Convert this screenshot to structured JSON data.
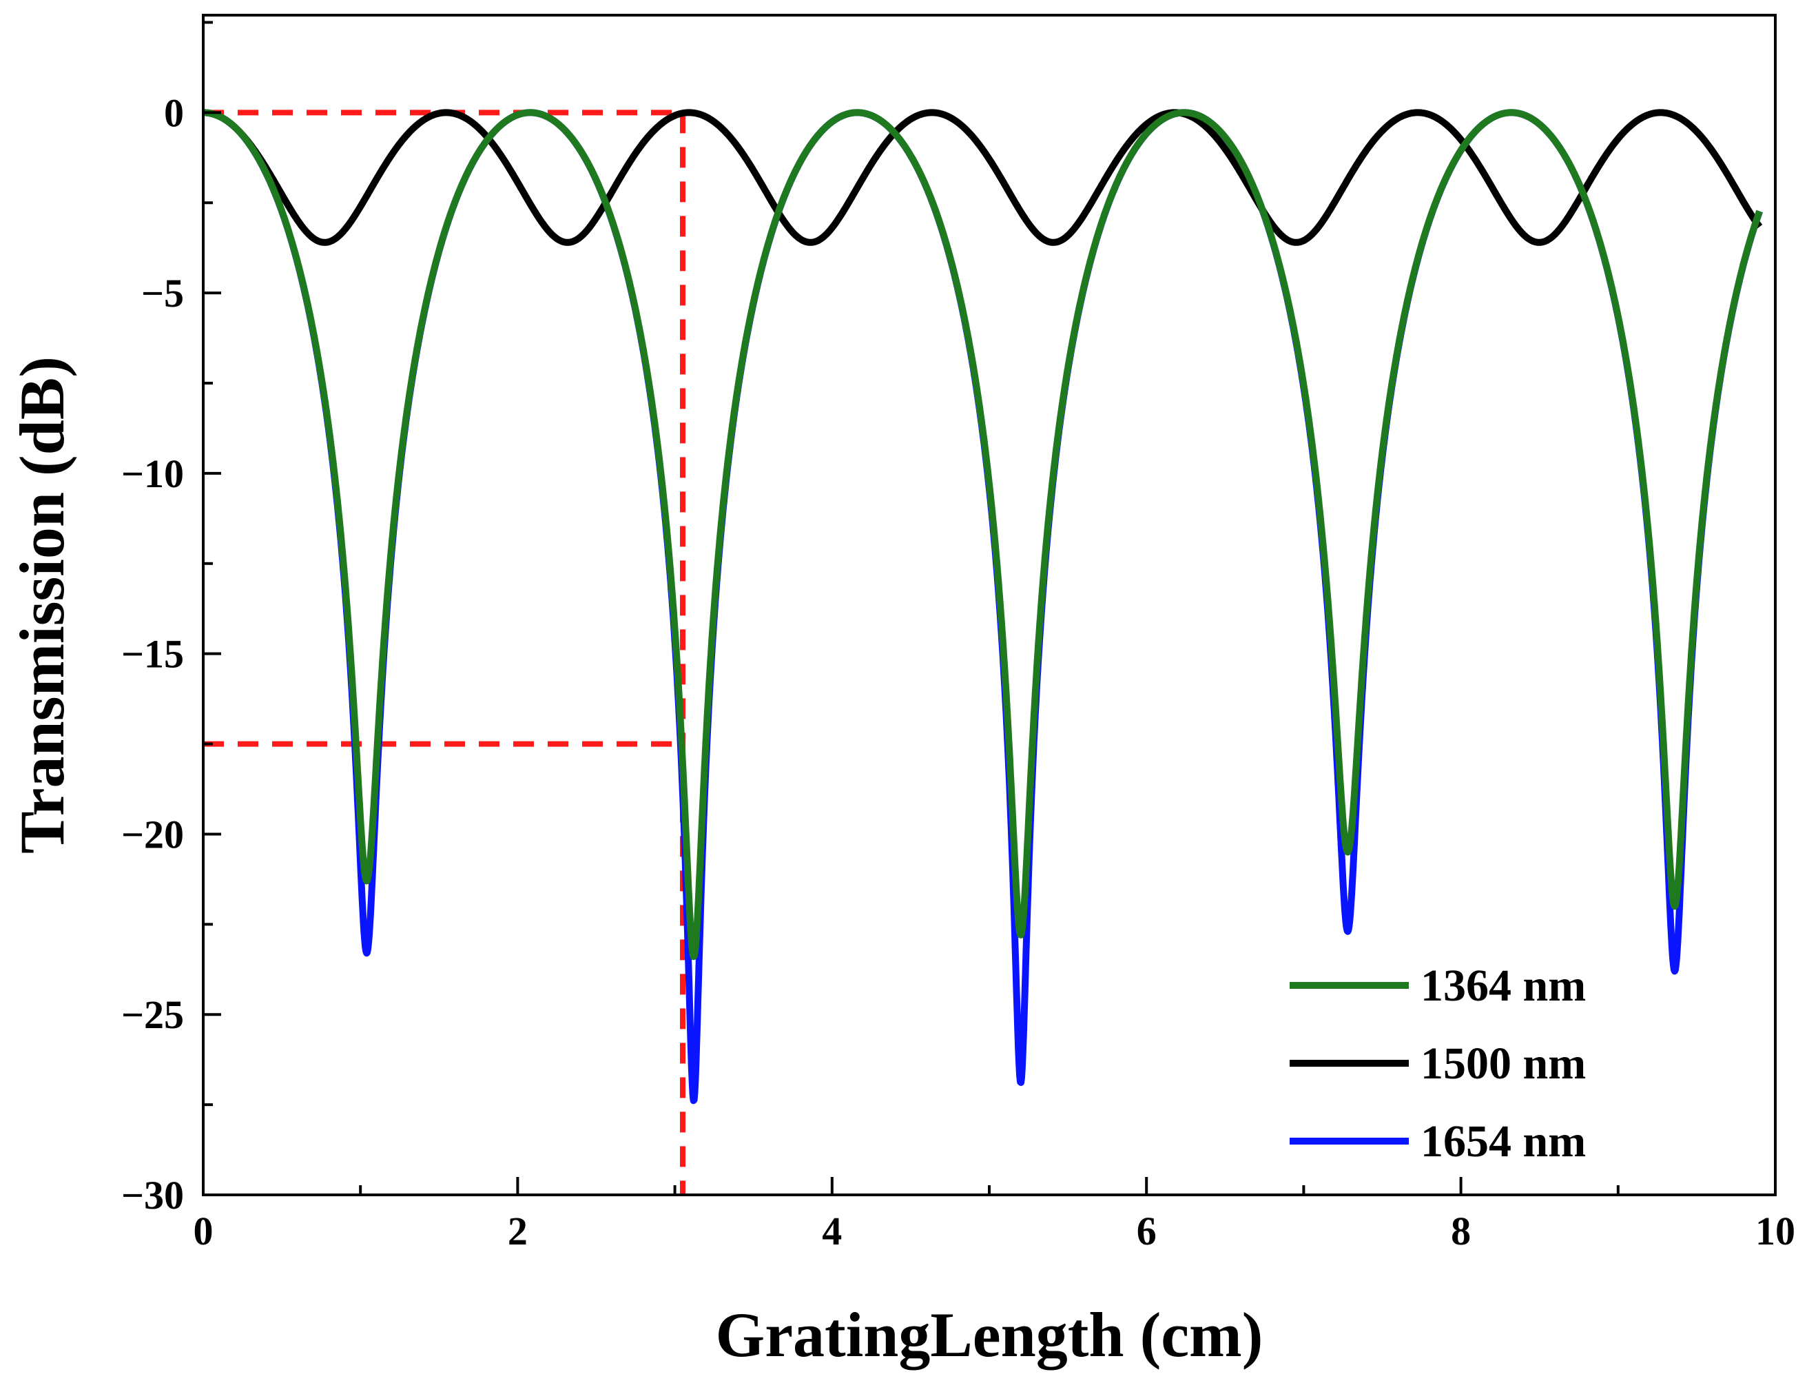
{
  "chart_data": {
    "type": "line",
    "title": "",
    "xlabel": "GratingLength (cm)",
    "ylabel": "Transmission (dB)",
    "xlim": [
      0,
      10
    ],
    "ylim": [
      -30,
      2.7
    ],
    "xticks": [
      0,
      2,
      4,
      6,
      8,
      10
    ],
    "xtick_labels": [
      "0",
      "2",
      "4",
      "6",
      "8",
      "10"
    ],
    "yticks": [
      0,
      -5,
      -10,
      -15,
      -20,
      -25,
      -30
    ],
    "ytick_labels": [
      "0",
      "−5",
      "−10",
      "−15",
      "−20",
      "−25",
      "−30"
    ],
    "grid": false,
    "legend_position": "bottom-right",
    "x_max_data": 9.9,
    "series": [
      {
        "name": "1654 nm",
        "legend_label": "1654 nm",
        "color": "#0a14ff",
        "period_cm": 2.08,
        "dip_depth_db": [
          -23.3,
          -27.4,
          -26.9,
          -22.7,
          -23.8
        ]
      },
      {
        "name": "1500 nm",
        "legend_label": "1500 nm",
        "color": "#000000",
        "period_cm": 1.545,
        "dip_depth_db": [
          -3.6,
          -3.6,
          -3.6,
          -3.6,
          -3.6,
          -3.6
        ]
      },
      {
        "name": "1364 nm",
        "legend_label": "1364 nm",
        "color": "#1f7a1f",
        "period_cm": 2.08,
        "dip_depth_db": [
          -21.3,
          -23.4,
          -22.8,
          -20.5,
          -22.0
        ]
      }
    ],
    "legend_order": [
      "1364 nm",
      "1500 nm",
      "1654 nm"
    ],
    "annotations": {
      "color": "#ff1a1a",
      "horizontal_lines": [
        {
          "y": 0,
          "x_from": 0,
          "x_to": 3.05
        },
        {
          "y": -17.5,
          "x_from": 0,
          "x_to": 3.05
        }
      ],
      "vertical_line": {
        "x": 3.05,
        "y_from": 0,
        "y_to": -30
      }
    }
  }
}
